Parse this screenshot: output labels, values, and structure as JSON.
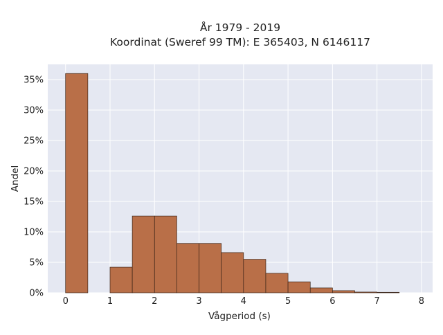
{
  "chart_data": {
    "type": "bar",
    "title_line1": "År 1979 - 2019",
    "title_line2": "Koordinat (Sweref 99 TM): E 365403, N 6146117",
    "xlabel": "Vågperiod (s)",
    "ylabel": "Andel",
    "bin_width": 0.5,
    "bins": [
      {
        "start": 0.0,
        "value": 36.0
      },
      {
        "start": 0.5,
        "value": 0.0
      },
      {
        "start": 1.0,
        "value": 4.2
      },
      {
        "start": 1.5,
        "value": 12.6
      },
      {
        "start": 2.0,
        "value": 12.6
      },
      {
        "start": 2.5,
        "value": 8.1
      },
      {
        "start": 3.0,
        "value": 8.1
      },
      {
        "start": 3.5,
        "value": 6.6
      },
      {
        "start": 4.0,
        "value": 5.5
      },
      {
        "start": 4.5,
        "value": 3.2
      },
      {
        "start": 5.0,
        "value": 1.8
      },
      {
        "start": 5.5,
        "value": 0.8
      },
      {
        "start": 6.0,
        "value": 0.35
      },
      {
        "start": 6.5,
        "value": 0.12
      },
      {
        "start": 7.0,
        "value": 0.08
      },
      {
        "start": 7.5,
        "value": 0.0
      }
    ],
    "x_ticks": [
      {
        "value": 0,
        "label": "0"
      },
      {
        "value": 1,
        "label": "1"
      },
      {
        "value": 2,
        "label": "2"
      },
      {
        "value": 3,
        "label": "3"
      },
      {
        "value": 4,
        "label": "4"
      },
      {
        "value": 5,
        "label": "5"
      },
      {
        "value": 6,
        "label": "6"
      },
      {
        "value": 7,
        "label": "7"
      },
      {
        "value": 8,
        "label": "8"
      }
    ],
    "y_ticks": [
      {
        "value": 0,
        "label": "0%"
      },
      {
        "value": 5,
        "label": "5%"
      },
      {
        "value": 10,
        "label": "10%"
      },
      {
        "value": 15,
        "label": "15%"
      },
      {
        "value": 20,
        "label": "20%"
      },
      {
        "value": 25,
        "label": "25%"
      },
      {
        "value": 30,
        "label": "30%"
      },
      {
        "value": 35,
        "label": "35%"
      }
    ],
    "xlim": [
      -0.4,
      8.25
    ],
    "ylim": [
      0,
      37.5
    ],
    "grid": true,
    "colors": {
      "plot_background": "#e5e8f2",
      "grid": "#ffffff",
      "bar_fill": "#b96f48",
      "bar_edge": "#3a2418"
    }
  }
}
